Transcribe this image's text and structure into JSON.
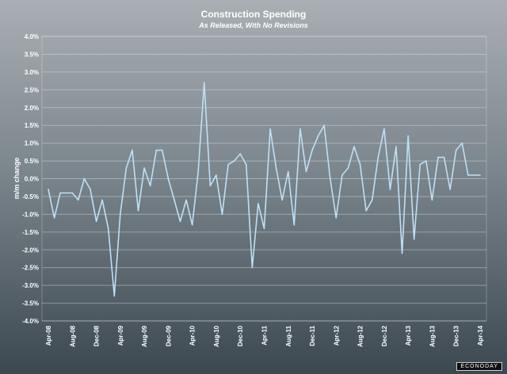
{
  "chart_data": {
    "type": "line",
    "title": "Construction Spending",
    "subtitle": "As Released, With No Revisions",
    "xlabel": "",
    "ylabel": "m/m change",
    "ylim": [
      -4.0,
      4.0
    ],
    "yticks": [
      "4.0%",
      "3.5%",
      "3.0%",
      "2.5%",
      "2.0%",
      "1.5%",
      "1.0%",
      "0.5%",
      "0.0%",
      "-0.5%",
      "-1.0%",
      "-1.5%",
      "-2.0%",
      "-2.5%",
      "-3.0%",
      "-3.5%",
      "-4.0%"
    ],
    "xticks": [
      "Apr-08",
      "Aug-08",
      "Dec-08",
      "Apr-09",
      "Aug-09",
      "Dec-09",
      "Apr-10",
      "Aug-10",
      "Dec-10",
      "Apr-11",
      "Aug-11",
      "Dec-11",
      "Apr-12",
      "Aug-12",
      "Dec-12",
      "Apr-13",
      "Aug-13",
      "Dec-13",
      "Apr-14"
    ],
    "x_start": "Apr-08",
    "x_end": "Apr-14",
    "x_frequency": "monthly",
    "grid": true,
    "line_color": "#bfe0f5",
    "values": [
      -0.3,
      -1.1,
      -0.4,
      -0.4,
      -0.4,
      -0.6,
      0.0,
      -0.3,
      -1.2,
      -0.6,
      -1.4,
      -3.3,
      -1.0,
      0.3,
      0.8,
      -0.9,
      0.3,
      -0.2,
      0.8,
      0.8,
      0.0,
      -0.6,
      -1.2,
      -0.6,
      -1.3,
      0.2,
      2.7,
      -0.2,
      0.1,
      -1.0,
      0.4,
      0.5,
      0.7,
      0.4,
      -2.5,
      -0.7,
      -1.4,
      1.4,
      0.3,
      -0.6,
      0.2,
      -1.3,
      1.4,
      0.2,
      0.8,
      1.2,
      1.5,
      0.0,
      -1.1,
      0.1,
      0.3,
      0.9,
      0.4,
      -0.9,
      -0.6,
      0.6,
      1.4,
      -0.3,
      0.9,
      -2.1,
      1.2,
      -1.7,
      0.4,
      0.5,
      -0.6,
      0.6,
      0.6,
      -0.3,
      0.8,
      1.0,
      0.1,
      0.1,
      0.1
    ]
  },
  "logo": "ECONODAY"
}
